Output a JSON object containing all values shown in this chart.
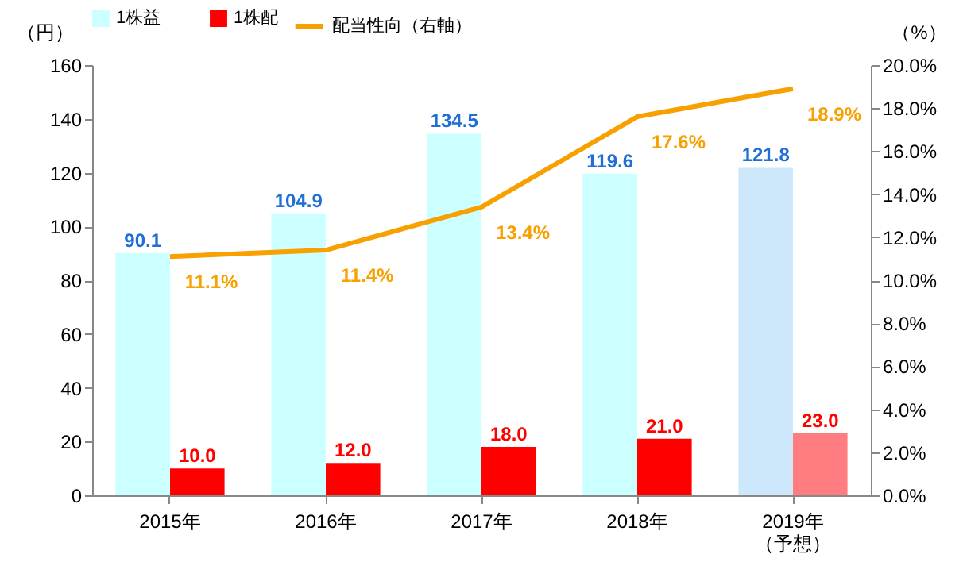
{
  "chart_data": {
    "type": "bar",
    "categories": [
      "2015年",
      "2016年",
      "2017年",
      "2018年",
      "2019年（予想）"
    ],
    "ylabel": "（円）",
    "y2label": "（%）",
    "ylim": [
      0,
      160
    ],
    "yticks": [
      0,
      20,
      40,
      60,
      80,
      100,
      120,
      140,
      160
    ],
    "y2lim": [
      0,
      20
    ],
    "y2ticks": [
      {
        "value": 0,
        "label": "0.0%"
      },
      {
        "value": 2,
        "label": "2.0%"
      },
      {
        "value": 4,
        "label": "4.0%"
      },
      {
        "value": 6,
        "label": "6.0%"
      },
      {
        "value": 8,
        "label": "8.0%"
      },
      {
        "value": 10,
        "label": "10.0%"
      },
      {
        "value": 12,
        "label": "12.0%"
      },
      {
        "value": 14,
        "label": "14.0%"
      },
      {
        "value": 16,
        "label": "16.0%"
      },
      {
        "value": 18,
        "label": "18.0%"
      },
      {
        "value": 20,
        "label": "20.0%"
      }
    ],
    "series": [
      {
        "name": "1株益",
        "color": "#ccffff",
        "colors": [
          "#ccffff",
          "#ccffff",
          "#ccffff",
          "#ccffff",
          "#cce8fa"
        ],
        "values": [
          90.1,
          104.9,
          134.5,
          119.6,
          121.8
        ],
        "value_labels": [
          "90.1",
          "104.9",
          "134.5",
          "119.6",
          "121.8"
        ]
      },
      {
        "name": "1株配",
        "color": "#ff0000",
        "colors": [
          "#ff0000",
          "#ff0000",
          "#ff0000",
          "#ff0000",
          "#ff7c80"
        ],
        "values": [
          10.0,
          12.0,
          18.0,
          21.0,
          23.0
        ],
        "value_labels": [
          "10.0",
          "12.0",
          "18.0",
          "21.0",
          "23.0"
        ]
      },
      {
        "name": "配当性向（右軸）",
        "type": "line",
        "axis": "y2",
        "color": "#f7a000",
        "values": [
          11.1,
          11.4,
          13.4,
          17.6,
          18.9
        ],
        "value_labels": [
          "11.1%",
          "11.4%",
          "13.4%",
          "17.6%",
          "18.9%"
        ]
      }
    ],
    "legend": "top",
    "grid": false,
    "marker": "none",
    "line_style": "solid"
  }
}
